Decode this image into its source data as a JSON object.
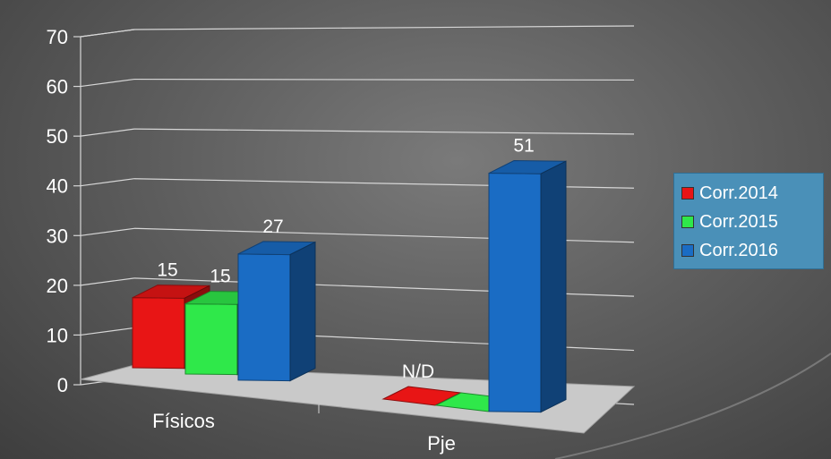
{
  "chart_data": {
    "type": "bar",
    "categories": [
      "Físicos",
      "Pje"
    ],
    "series": [
      {
        "name": "Corr.2014",
        "values": [
          15,
          null
        ],
        "labels": [
          "15",
          "N/D"
        ],
        "color": "#e81515"
      },
      {
        "name": "Corr.2015",
        "values": [
          15,
          null
        ],
        "labels": [
          "15",
          ""
        ],
        "color": "#2fe84a"
      },
      {
        "name": "Corr.2016",
        "values": [
          27,
          51
        ],
        "labels": [
          "27",
          "51"
        ],
        "color": "#1a6cc4"
      }
    ],
    "yticks": [
      "0",
      "10",
      "20",
      "30",
      "40",
      "50",
      "60",
      "70"
    ],
    "ylim": [
      0,
      70
    ],
    "grid": true,
    "legend_position": "right",
    "title": "",
    "xlabel": "",
    "ylabel": ""
  }
}
